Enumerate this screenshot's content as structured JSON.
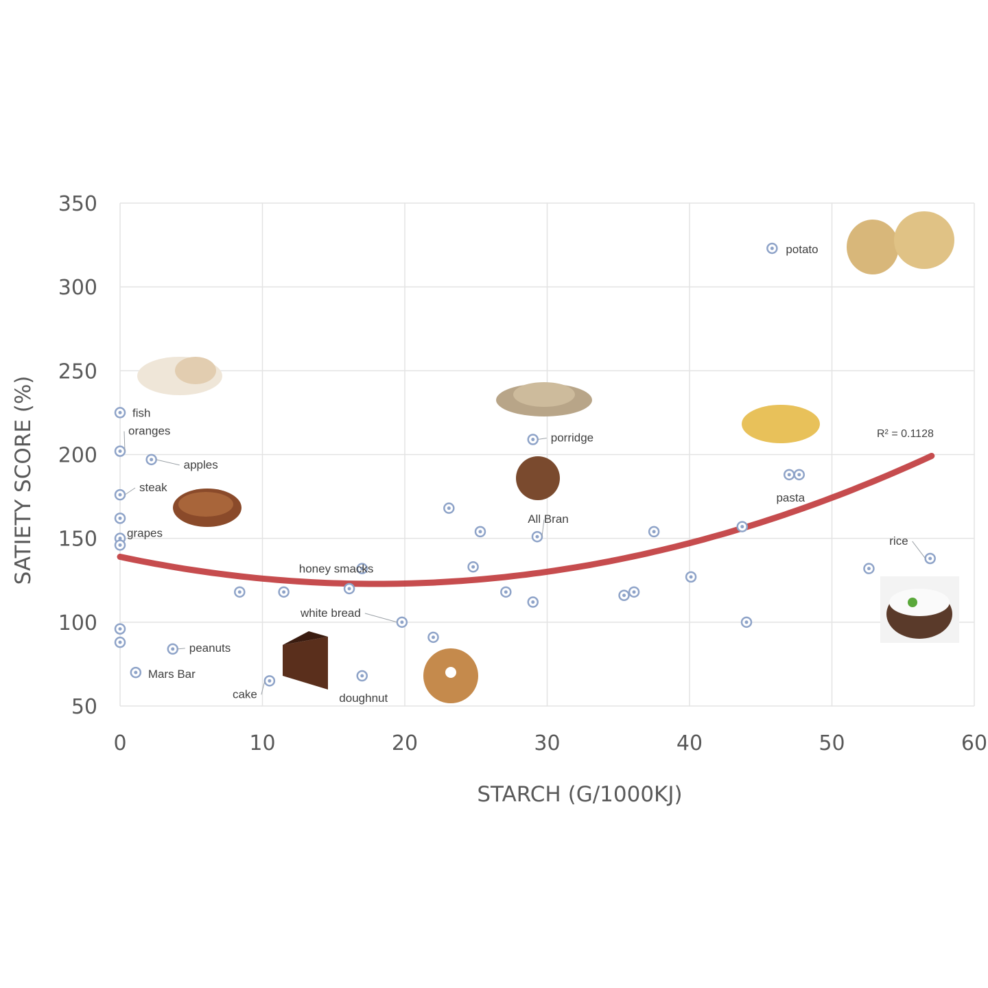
{
  "chart_data": {
    "type": "scatter",
    "title": "",
    "xlabel": "STARCH (G/1000KJ)",
    "ylabel": "SATIETY SCORE (%)",
    "xlim": [
      0,
      60
    ],
    "ylim": [
      50,
      350
    ],
    "xticks": [
      0,
      10,
      20,
      30,
      40,
      50,
      60
    ],
    "yticks": [
      50,
      100,
      150,
      200,
      250,
      300,
      350
    ],
    "grid": true,
    "legend": "none",
    "marker_color": "#8EA3C8",
    "trendline": {
      "type": "polynomial-2",
      "color": "#C0393B",
      "coefficients": {
        "a": 0.0501,
        "b": -1.8,
        "c": 139
      },
      "x_range": [
        0,
        57
      ],
      "label": "R² = 0.1128"
    },
    "points": [
      {
        "x": 0,
        "y": 225,
        "label": "fish"
      },
      {
        "x": 0,
        "y": 202,
        "label": "oranges"
      },
      {
        "x": 2.2,
        "y": 197,
        "label": "apples"
      },
      {
        "x": 0,
        "y": 176,
        "label": "steak"
      },
      {
        "x": 0,
        "y": 162,
        "label": ""
      },
      {
        "x": 0,
        "y": 150,
        "label": "grapes"
      },
      {
        "x": 0,
        "y": 146,
        "label": ""
      },
      {
        "x": 0,
        "y": 96,
        "label": ""
      },
      {
        "x": 0,
        "y": 88,
        "label": ""
      },
      {
        "x": 3.7,
        "y": 84,
        "label": "peanuts"
      },
      {
        "x": 1.1,
        "y": 70,
        "label": "Mars Bar"
      },
      {
        "x": 8.4,
        "y": 118,
        "label": ""
      },
      {
        "x": 11.5,
        "y": 118,
        "label": ""
      },
      {
        "x": 10.5,
        "y": 65,
        "label": "cake"
      },
      {
        "x": 17,
        "y": 132,
        "label": "honey smacks"
      },
      {
        "x": 16.1,
        "y": 120,
        "label": ""
      },
      {
        "x": 19.8,
        "y": 100,
        "label": "white bread"
      },
      {
        "x": 17,
        "y": 68,
        "label": "doughnut"
      },
      {
        "x": 22,
        "y": 91,
        "label": ""
      },
      {
        "x": 23.1,
        "y": 168,
        "label": ""
      },
      {
        "x": 25.3,
        "y": 154,
        "label": ""
      },
      {
        "x": 24.8,
        "y": 133,
        "label": ""
      },
      {
        "x": 27.1,
        "y": 118,
        "label": ""
      },
      {
        "x": 29,
        "y": 209,
        "label": "porridge"
      },
      {
        "x": 29.3,
        "y": 151,
        "label": "All Bran"
      },
      {
        "x": 29,
        "y": 112,
        "label": ""
      },
      {
        "x": 35.4,
        "y": 116,
        "label": ""
      },
      {
        "x": 36.1,
        "y": 118,
        "label": ""
      },
      {
        "x": 37.5,
        "y": 154,
        "label": ""
      },
      {
        "x": 40.1,
        "y": 127,
        "label": ""
      },
      {
        "x": 43.7,
        "y": 157,
        "label": ""
      },
      {
        "x": 44,
        "y": 100,
        "label": ""
      },
      {
        "x": 45.8,
        "y": 323,
        "label": "potato"
      },
      {
        "x": 47,
        "y": 188,
        "label": "pasta"
      },
      {
        "x": 47.7,
        "y": 188,
        "label": ""
      },
      {
        "x": 52.6,
        "y": 132,
        "label": ""
      },
      {
        "x": 56.9,
        "y": 138,
        "label": "rice"
      }
    ],
    "food_pictures": [
      "fish",
      "steak",
      "cake",
      "doughnut",
      "porridge",
      "All Bran",
      "pasta",
      "potato",
      "rice"
    ]
  }
}
